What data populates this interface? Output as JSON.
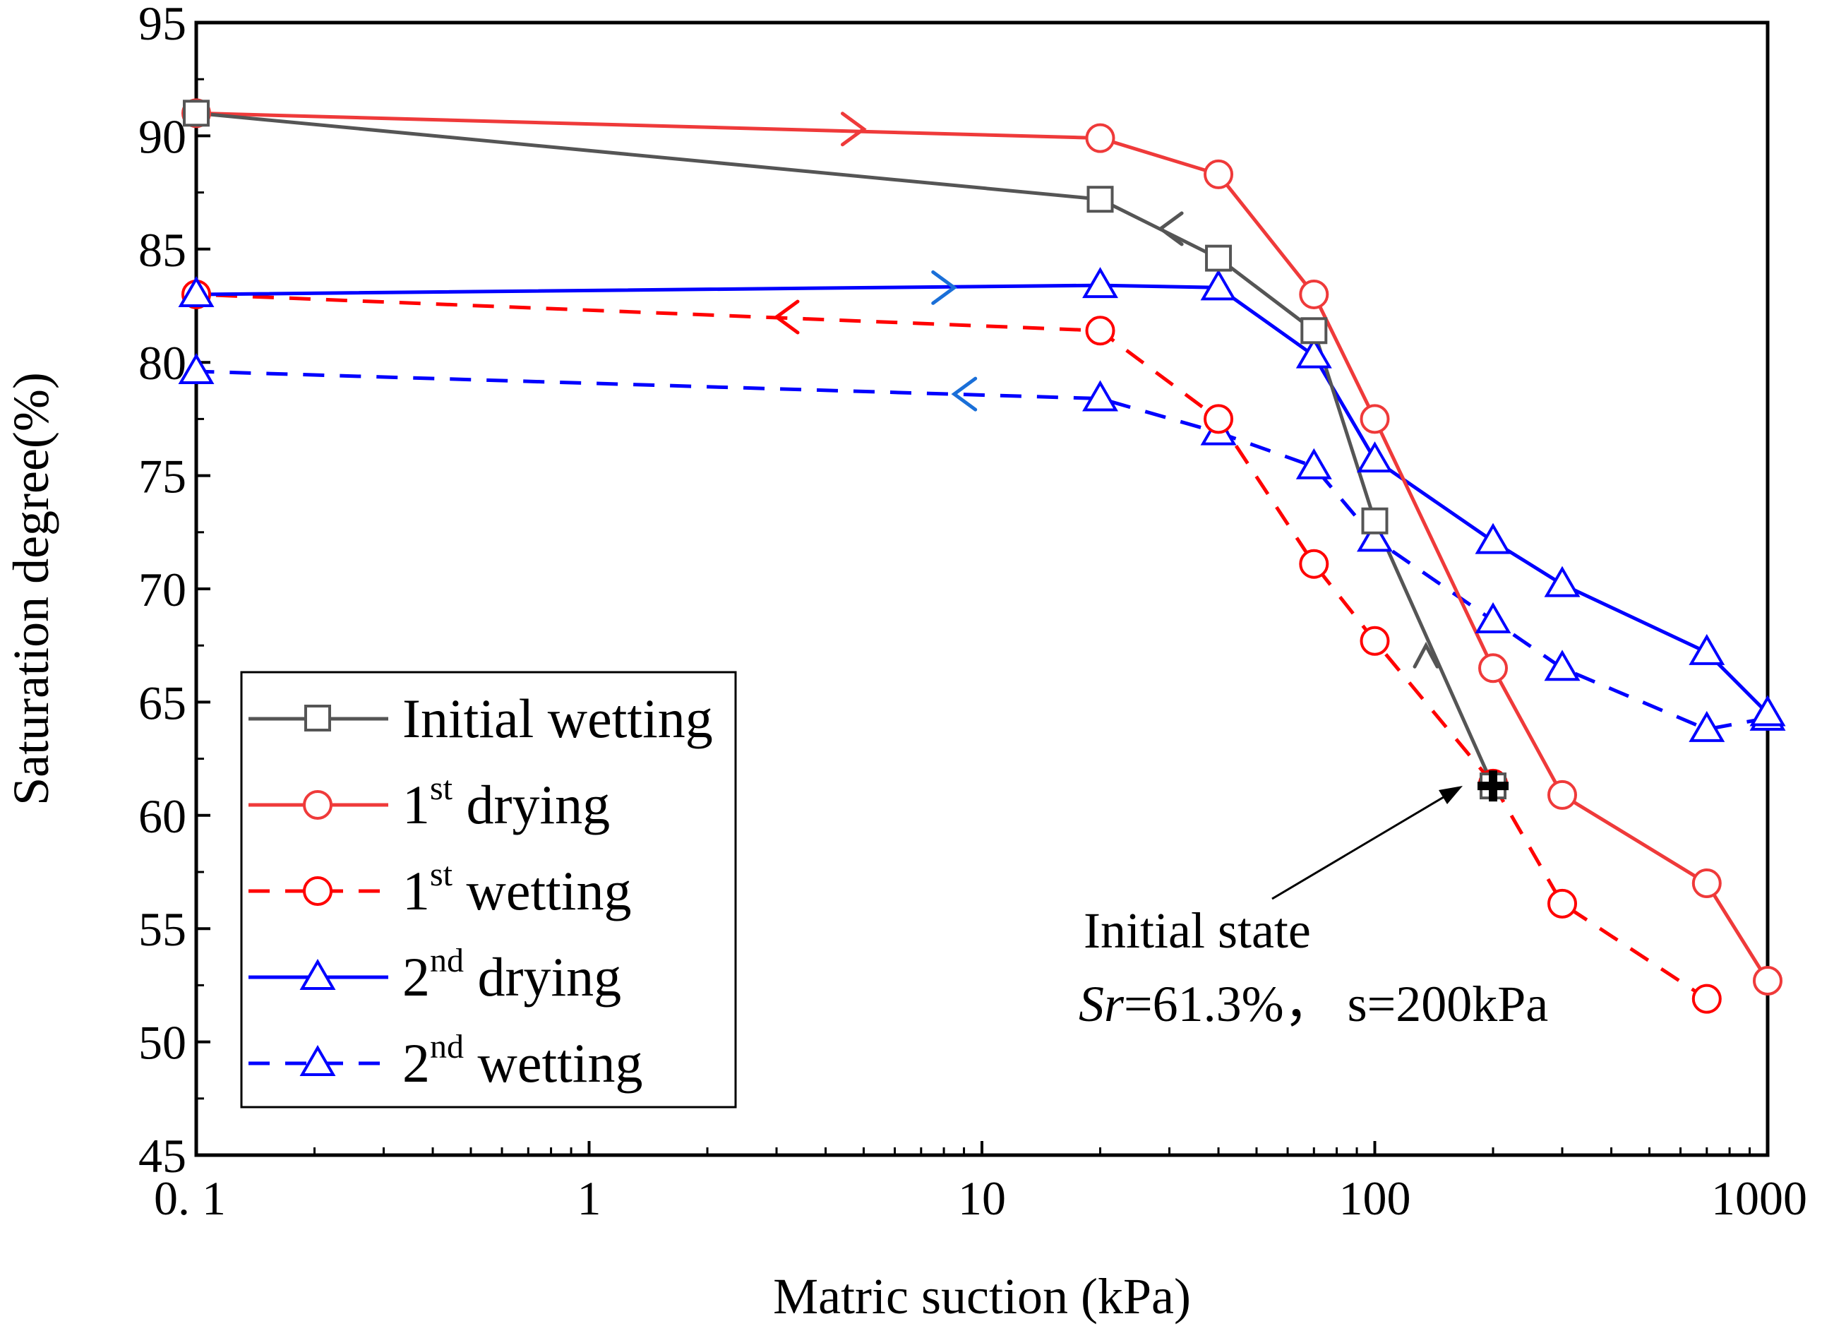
{
  "chart_data": {
    "type": "line",
    "xscale": "log",
    "xlabel": "Matric suction (kPa)",
    "ylabel": "Saturation degree(%)",
    "xlim": [
      0.1,
      1000
    ],
    "ylim": [
      45,
      95
    ],
    "x_ticks": [
      {
        "value": 0.1,
        "label": "0. 1"
      },
      {
        "value": 1,
        "label": "1"
      },
      {
        "value": 10,
        "label": "10"
      },
      {
        "value": 100,
        "label": "100"
      },
      {
        "value": 1000,
        "label": "1000"
      }
    ],
    "y_ticks": [
      45,
      50,
      55,
      60,
      65,
      70,
      75,
      80,
      85,
      90,
      95
    ],
    "series": [
      {
        "id": "initial-wetting",
        "name": "Initial wetting",
        "color": "#555555",
        "dash": "solid",
        "marker": "square",
        "x": [
          200,
          100,
          70,
          40,
          20,
          0.1
        ],
        "y": [
          61.3,
          73.0,
          81.4,
          84.6,
          87.2,
          91.0
        ],
        "arrows": [
          {
            "x": 135,
            "y": 67.5,
            "toward": "up"
          },
          {
            "x": 28.5,
            "y": 85.9,
            "toward": "left"
          }
        ]
      },
      {
        "id": "first-drying",
        "name": "1st drying",
        "label_main": "1",
        "label_sup": "st",
        "label_rest": " drying",
        "color": "#ef3a3a",
        "dash": "solid",
        "marker": "circle",
        "x": [
          0.1,
          20,
          40,
          70,
          100,
          200,
          300,
          700,
          1000
        ],
        "y": [
          91.0,
          89.9,
          88.3,
          83.0,
          77.5,
          66.5,
          60.9,
          57.0,
          52.7
        ],
        "arrows": [
          {
            "x": 5,
            "y": 90.3,
            "toward": "right"
          }
        ]
      },
      {
        "id": "first-wetting",
        "name": "1st wetting",
        "label_main": "1",
        "label_sup": "st",
        "label_rest": " wetting",
        "color": "#ff0000",
        "dash": "dashed",
        "marker": "circle",
        "x": [
          200,
          300,
          700
        ],
        "y": [
          61.4,
          56.1,
          51.9
        ],
        "x_wet": [
          200,
          100,
          70,
          40,
          20,
          0.1
        ],
        "y_wet": [
          61.4,
          67.7,
          71.1,
          77.5,
          81.4,
          83.0
        ],
        "arrows": [
          {
            "x": 3,
            "y": 82.0,
            "toward": "left"
          }
        ]
      },
      {
        "id": "second-drying",
        "name": "2nd drying",
        "label_main": "2",
        "label_sup": "nd",
        "label_rest": " drying",
        "color": "#0000ff",
        "dash": "solid",
        "marker": "triangle",
        "x": [
          0.1,
          20,
          40,
          70,
          100,
          200,
          300,
          700,
          1000
        ],
        "y": [
          83.0,
          83.4,
          83.3,
          80.3,
          75.7,
          72.1,
          70.2,
          67.2,
          64.5
        ],
        "arrows": [
          {
            "x": 8.5,
            "y": 83.3,
            "toward": "right"
          }
        ]
      },
      {
        "id": "second-wetting",
        "name": "2nd wetting",
        "label_main": "2",
        "label_sup": "nd",
        "label_rest": " wetting",
        "color": "#0000ff",
        "dash": "dashed",
        "marker": "triangle",
        "x": [
          1000,
          700,
          300,
          200,
          100,
          70,
          40,
          20,
          0.1
        ],
        "y": [
          64.3,
          63.8,
          66.5,
          68.6,
          72.2,
          75.4,
          76.9,
          78.4,
          79.6
        ],
        "arrows": [
          {
            "x": 8.5,
            "y": 78.6,
            "toward": "left"
          }
        ]
      }
    ],
    "annotation": {
      "line1": "Initial state",
      "line2_italic": "Sr",
      "line2_rest": "=61.3%，  s=200kPa",
      "point": {
        "x": 200,
        "y": 61.3
      }
    },
    "legend_position": "lower-left"
  },
  "colors": {
    "gray": "#555555",
    "red": "#ef3a3a",
    "red_dashed": "#ff0000",
    "blue": "#0000ff",
    "arrow_blue": "#1a6fd8"
  }
}
